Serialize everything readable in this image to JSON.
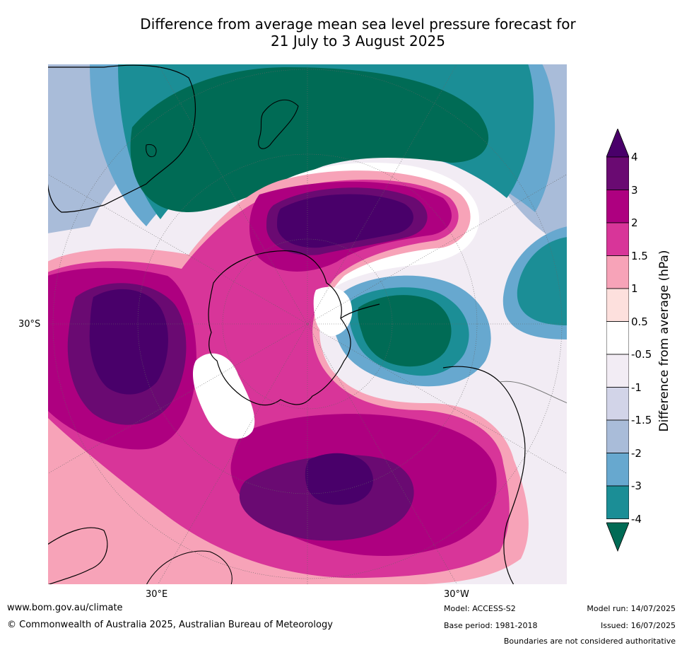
{
  "title": {
    "line1": "Difference from average mean sea level pressure forecast for",
    "line2": "21 July to 3 August 2025"
  },
  "map": {
    "projection": "south-polar-stereographic",
    "lat_label": "30°S",
    "lon_labels": [
      "30°E",
      "30°W"
    ],
    "anomaly_centres": [
      {
        "name": "high-south-pacific",
        "sign": "positive",
        "peak_hpa": 4
      },
      {
        "name": "high-south-indian",
        "sign": "positive",
        "peak_hpa": 4
      },
      {
        "name": "high-south-atlantic",
        "sign": "positive",
        "peak_hpa": 4
      },
      {
        "name": "low-tasman-nz",
        "sign": "negative",
        "peak_hpa": -4
      },
      {
        "name": "low-amundsen-sea",
        "sign": "negative",
        "peak_hpa": -4
      },
      {
        "name": "low-southeast-pacific",
        "sign": "negative",
        "peak_hpa": -3
      }
    ]
  },
  "colorbar": {
    "title": "Difference from average (hPa)",
    "tick_labels": [
      "4",
      "3",
      "2",
      "1.5",
      "1",
      "0.5",
      "-0.5",
      "-1",
      "-1.5",
      "-2",
      "-3",
      "-4"
    ],
    "colors": [
      "#6a0a72",
      "#ae0080",
      "#d83599",
      "#f7a3b8",
      "#fde0dd",
      "#ffffff",
      "#f2ecf4",
      "#d2d4e8",
      "#a9bcd9",
      "#67a8cf",
      "#1b8e96"
    ],
    "over_color": "#49006a",
    "under_color": "#006b55"
  },
  "footer": {
    "website": "www.bom.gov.au/climate",
    "copyright": "© Commonwealth of Australia 2025, Australian Bureau of Meteorology",
    "model": "Model: ACCESS-S2",
    "base_period": "Base period: 1981-2018",
    "model_run": "Model run: 14/07/2025",
    "issued": "Issued: 16/07/2025",
    "disclaimer": "Boundaries are not considered authoritative"
  }
}
